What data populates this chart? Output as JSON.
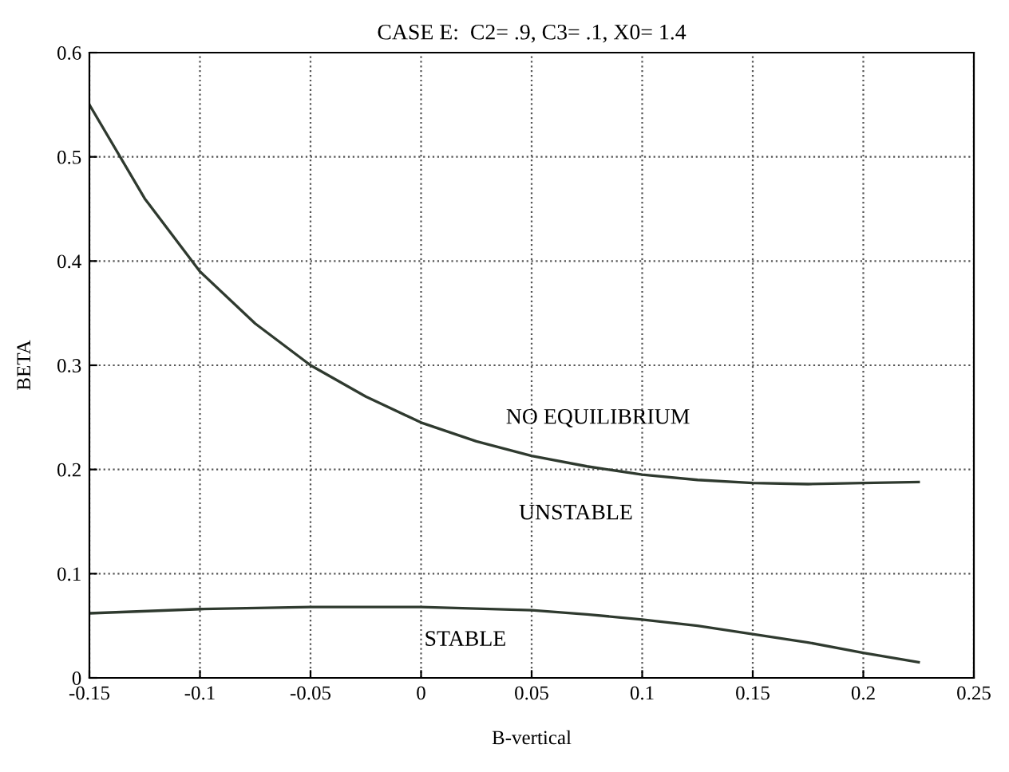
{
  "chart_data": {
    "type": "line",
    "title": "CASE E:  C2= .9, C3= .1, X0= 1.4",
    "xlabel": "B-vertical",
    "ylabel": "BETA",
    "series": [
      {
        "color": "#2f3a2f",
        "x": [
          -0.15,
          -0.125,
          -0.1,
          -0.075,
          -0.05,
          -0.025,
          0,
          0.025,
          0.05,
          0.075,
          0.1,
          0.125,
          0.15,
          0.175,
          0.2,
          0.225
        ],
        "values": [
          0.55,
          0.46,
          0.39,
          0.34,
          0.3,
          0.27,
          0.245,
          0.227,
          0.213,
          0.203,
          0.195,
          0.19,
          0.187,
          0.186,
          0.187,
          0.188
        ]
      },
      {
        "color": "#2f3a2f",
        "x": [
          -0.15,
          -0.1,
          -0.05,
          0,
          0.05,
          0.075,
          0.1,
          0.125,
          0.15,
          0.175,
          0.2,
          0.225
        ],
        "values": [
          0.062,
          0.066,
          0.068,
          0.068,
          0.065,
          0.061,
          0.056,
          0.05,
          0.042,
          0.034,
          0.024,
          0.015
        ]
      }
    ],
    "annotations": [
      "NO EQUILIBRIUM",
      "UNSTABLE",
      "STABLE"
    ],
    "xlim": [
      -0.15,
      0.25
    ],
    "xticks": [
      -0.15,
      -0.1,
      -0.05,
      0,
      0.05,
      0.1,
      0.15,
      0.2,
      0.25
    ],
    "ylim": [
      0,
      0.6
    ],
    "yticks": [
      0,
      0.1,
      0.2,
      0.3,
      0.4,
      0.5,
      0.6
    ],
    "grid": true,
    "line_style": "solid",
    "marker": "none",
    "legend": false
  }
}
